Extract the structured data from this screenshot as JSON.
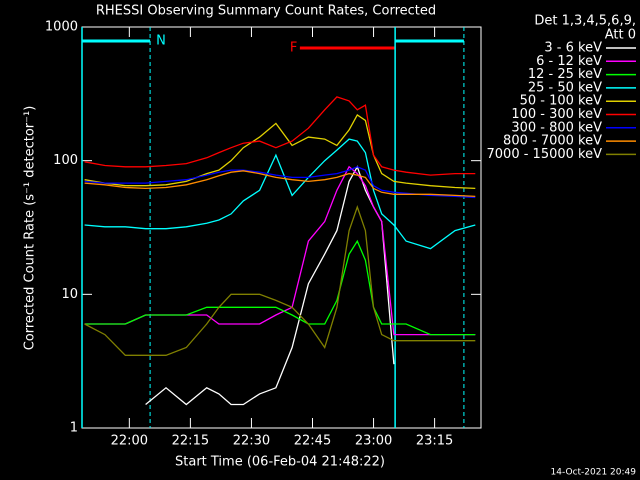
{
  "chart_data": {
    "type": "line",
    "title": "RHESSI Observing Summary Count Rates, Corrected",
    "legend_title": [
      "Det 1,3,4,5,6,9,",
      "Att 0"
    ],
    "xlabel": "Start Time (06-Feb-04 21:48:22)",
    "ylabel": "Corrected Count Rate (s⁻¹ detector⁻¹)",
    "footer": "14-Oct-2021 20:49",
    "log_y": true,
    "xlim": [
      48.37,
      146.4
    ],
    "ylim": [
      1,
      1000
    ],
    "xticks": [
      {
        "value": 60,
        "label": "22:00"
      },
      {
        "value": 75,
        "label": "22:15"
      },
      {
        "value": 90,
        "label": "22:30"
      },
      {
        "value": 105,
        "label": "22:45"
      },
      {
        "value": 120,
        "label": "23:00"
      },
      {
        "value": 135,
        "label": "23:15"
      }
    ],
    "yticks": [
      1,
      10,
      100,
      1000
    ],
    "intervals": [
      {
        "label": "N",
        "start": 48.37,
        "end": 65.1,
        "color": "#00ffff"
      },
      {
        "label": "F",
        "start": 101.9,
        "end": 125.3,
        "color": "#ff0000"
      },
      {
        "start": 125.3,
        "end": 142.2,
        "color": "#00ffff"
      }
    ],
    "x": [
      49,
      54,
      59,
      64,
      69,
      74,
      79,
      82,
      85,
      88,
      92,
      96,
      100,
      104,
      108,
      111,
      114,
      116,
      118,
      120,
      122,
      125,
      128,
      134,
      140,
      145
    ],
    "series": [
      {
        "name": "3 - 6 keV",
        "color": "#ffffff",
        "values": [
          null,
          null,
          null,
          1.5,
          2,
          1.5,
          2,
          1.8,
          1.5,
          1.5,
          1.8,
          2,
          4,
          12,
          20,
          30,
          70,
          90,
          60,
          45,
          35,
          3,
          null,
          null,
          null,
          null
        ]
      },
      {
        "name": "6 - 12 keV",
        "color": "#ff00ff",
        "values": [
          6,
          6,
          6,
          7,
          7,
          7,
          7,
          6,
          6,
          6,
          6,
          7,
          8,
          25,
          35,
          60,
          90,
          80,
          65,
          45,
          35,
          5,
          5,
          5,
          5,
          5
        ]
      },
      {
        "name": "12 - 25 keV",
        "color": "#00ff00",
        "values": [
          6,
          6,
          6,
          7,
          7,
          7,
          8,
          8,
          8,
          8,
          8,
          8,
          7,
          6,
          6,
          9,
          20,
          25,
          18,
          8,
          6,
          6,
          6,
          5,
          5,
          5
        ]
      },
      {
        "name": "25 - 50 keV",
        "color": "#00ffff",
        "values": [
          33,
          32,
          32,
          31,
          31,
          32,
          34,
          36,
          40,
          50,
          60,
          110,
          55,
          75,
          100,
          120,
          145,
          140,
          115,
          60,
          40,
          33,
          25,
          22,
          30,
          33
        ]
      },
      {
        "name": "50 - 100 keV",
        "color": "#e0d000",
        "values": [
          72,
          68,
          65,
          65,
          66,
          70,
          80,
          85,
          100,
          125,
          150,
          190,
          130,
          150,
          145,
          130,
          170,
          220,
          200,
          110,
          80,
          70,
          68,
          65,
          63,
          62
        ]
      },
      {
        "name": "100 - 300 keV",
        "color": "#ff0000",
        "values": [
          98,
          92,
          90,
          90,
          92,
          95,
          105,
          115,
          125,
          135,
          140,
          125,
          140,
          175,
          240,
          300,
          280,
          240,
          260,
          110,
          90,
          85,
          82,
          78,
          80,
          80
        ]
      },
      {
        "name": "300 - 800 keV",
        "color": "#0000ff",
        "values": [
          70,
          68,
          68,
          68,
          70,
          72,
          78,
          82,
          85,
          85,
          82,
          78,
          75,
          75,
          78,
          80,
          85,
          90,
          85,
          65,
          60,
          58,
          57,
          55,
          54,
          53
        ]
      },
      {
        "name": "800 - 7000 keV",
        "color": "#ff8c00",
        "values": [
          68,
          66,
          63,
          62,
          63,
          66,
          72,
          77,
          82,
          84,
          80,
          75,
          72,
          70,
          72,
          75,
          80,
          78,
          75,
          62,
          58,
          56,
          56,
          56,
          55,
          54
        ]
      },
      {
        "name": "7000 - 15000 keV",
        "color": "#808000",
        "values": [
          6,
          5,
          3.5,
          3.5,
          3.5,
          4,
          6,
          8,
          10,
          10,
          10,
          9,
          8,
          6,
          4,
          8,
          30,
          45,
          30,
          8,
          5,
          4.5,
          4.5,
          4.5,
          4.5,
          4.5
        ]
      }
    ]
  }
}
